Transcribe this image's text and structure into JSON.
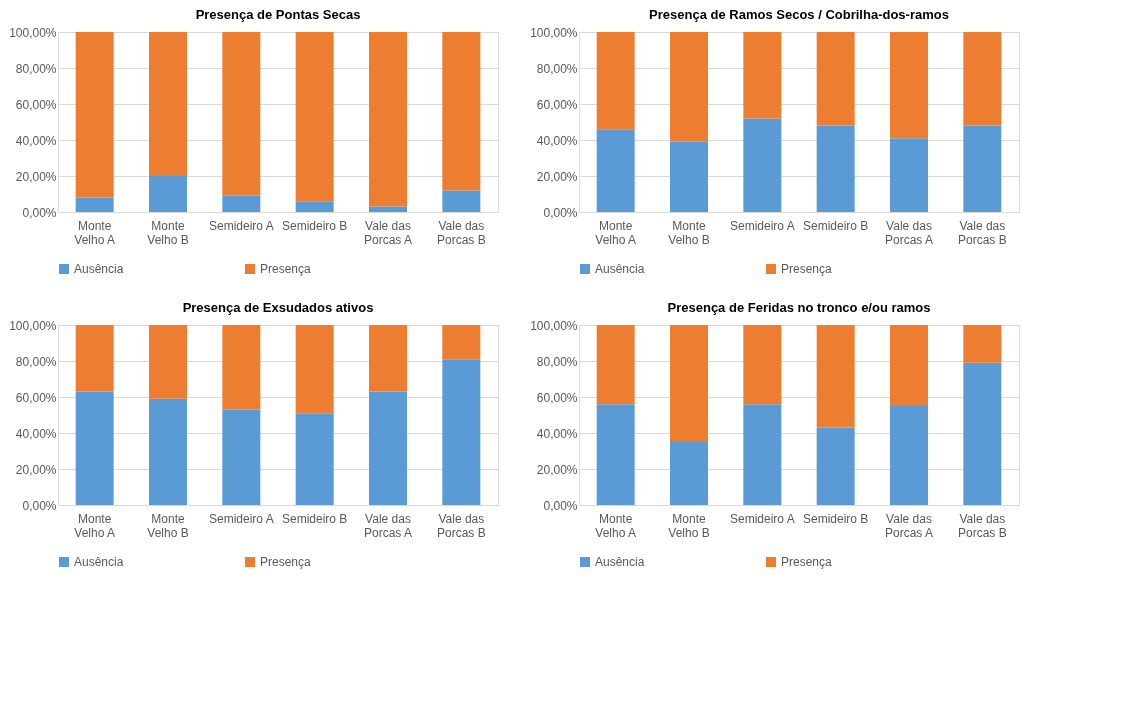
{
  "chart_data": [
    {
      "type": "bar",
      "title": "Presença de Pontas Secas",
      "categories": [
        "Monte Velho A",
        "Monte Velho B",
        "Semideiro A",
        "Semideiro B",
        "Vale das Porcas A",
        "Vale das Porcas B"
      ],
      "stacked": true,
      "ylim": [
        0,
        100
      ],
      "yticks": [
        {
          "value": 0,
          "label": "0,00%"
        },
        {
          "value": 20,
          "label": "20,00%"
        },
        {
          "value": 40,
          "label": "40,00%"
        },
        {
          "value": 60,
          "label": "60,00%"
        },
        {
          "value": 80,
          "label": "80,00%"
        },
        {
          "value": 100,
          "label": "100,00%"
        }
      ],
      "grid": "y",
      "legend": "bottom",
      "series": [
        {
          "name": "Ausência",
          "color": "#5b9bd5",
          "values": [
            8,
            20,
            9,
            6,
            3,
            12
          ]
        },
        {
          "name": "Presença",
          "color": "#ed7d31",
          "values": [
            92,
            80,
            91,
            94,
            97,
            88
          ]
        }
      ]
    },
    {
      "type": "bar",
      "title": "Presença de Ramos Secos / Cobrilha-dos-ramos",
      "categories": [
        "Monte Velho A",
        "Monte Velho B",
        "Semideiro A",
        "Semideiro B",
        "Vale das Porcas A",
        "Vale das Porcas B"
      ],
      "stacked": true,
      "ylim": [
        0,
        100
      ],
      "yticks": [
        {
          "value": 0,
          "label": "0,00%"
        },
        {
          "value": 20,
          "label": "20,00%"
        },
        {
          "value": 40,
          "label": "40,00%"
        },
        {
          "value": 60,
          "label": "60,00%"
        },
        {
          "value": 80,
          "label": "80,00%"
        },
        {
          "value": 100,
          "label": "100,00%"
        }
      ],
      "grid": "y",
      "legend": "bottom",
      "series": [
        {
          "name": "Ausência",
          "color": "#5b9bd5",
          "values": [
            46,
            39,
            52,
            48,
            41,
            48
          ]
        },
        {
          "name": "Presença",
          "color": "#ed7d31",
          "values": [
            54,
            61,
            48,
            52,
            59,
            52
          ]
        }
      ]
    },
    {
      "type": "bar",
      "title": "Presença de Exsudados ativos",
      "categories": [
        "Monte Velho A",
        "Monte Velho B",
        "Semideiro A",
        "Semideiro B",
        "Vale das Porcas A",
        "Vale das Porcas B"
      ],
      "stacked": true,
      "ylim": [
        0,
        100
      ],
      "yticks": [
        {
          "value": 0,
          "label": "0,00%"
        },
        {
          "value": 20,
          "label": "20,00%"
        },
        {
          "value": 40,
          "label": "40,00%"
        },
        {
          "value": 60,
          "label": "60,00%"
        },
        {
          "value": 80,
          "label": "80,00%"
        },
        {
          "value": 100,
          "label": "100,00%"
        }
      ],
      "grid": "y",
      "legend": "bottom",
      "series": [
        {
          "name": "Ausência",
          "color": "#5b9bd5",
          "values": [
            63,
            59,
            53,
            51,
            63,
            81
          ]
        },
        {
          "name": "Presença",
          "color": "#ed7d31",
          "values": [
            37,
            41,
            47,
            49,
            37,
            19
          ]
        }
      ]
    },
    {
      "type": "bar",
      "title": "Presença de Feridas no tronco e/ou ramos",
      "categories": [
        "Monte Velho A",
        "Monte Velho B",
        "Semideiro A",
        "Semideiro B",
        "Vale das Porcas A",
        "Vale das Porcas B"
      ],
      "stacked": true,
      "ylim": [
        0,
        100
      ],
      "yticks": [
        {
          "value": 0,
          "label": "0,00%"
        },
        {
          "value": 20,
          "label": "20,00%"
        },
        {
          "value": 40,
          "label": "40,00%"
        },
        {
          "value": 60,
          "label": "60,00%"
        },
        {
          "value": 80,
          "label": "80,00%"
        },
        {
          "value": 100,
          "label": "100,00%"
        }
      ],
      "grid": "y",
      "legend": "bottom",
      "series": [
        {
          "name": "Ausência",
          "color": "#5b9bd5",
          "values": [
            56,
            35,
            56,
            43,
            55,
            79
          ]
        },
        {
          "name": "Presença",
          "color": "#ed7d31",
          "values": [
            44,
            65,
            44,
            57,
            45,
            21
          ]
        }
      ]
    }
  ]
}
